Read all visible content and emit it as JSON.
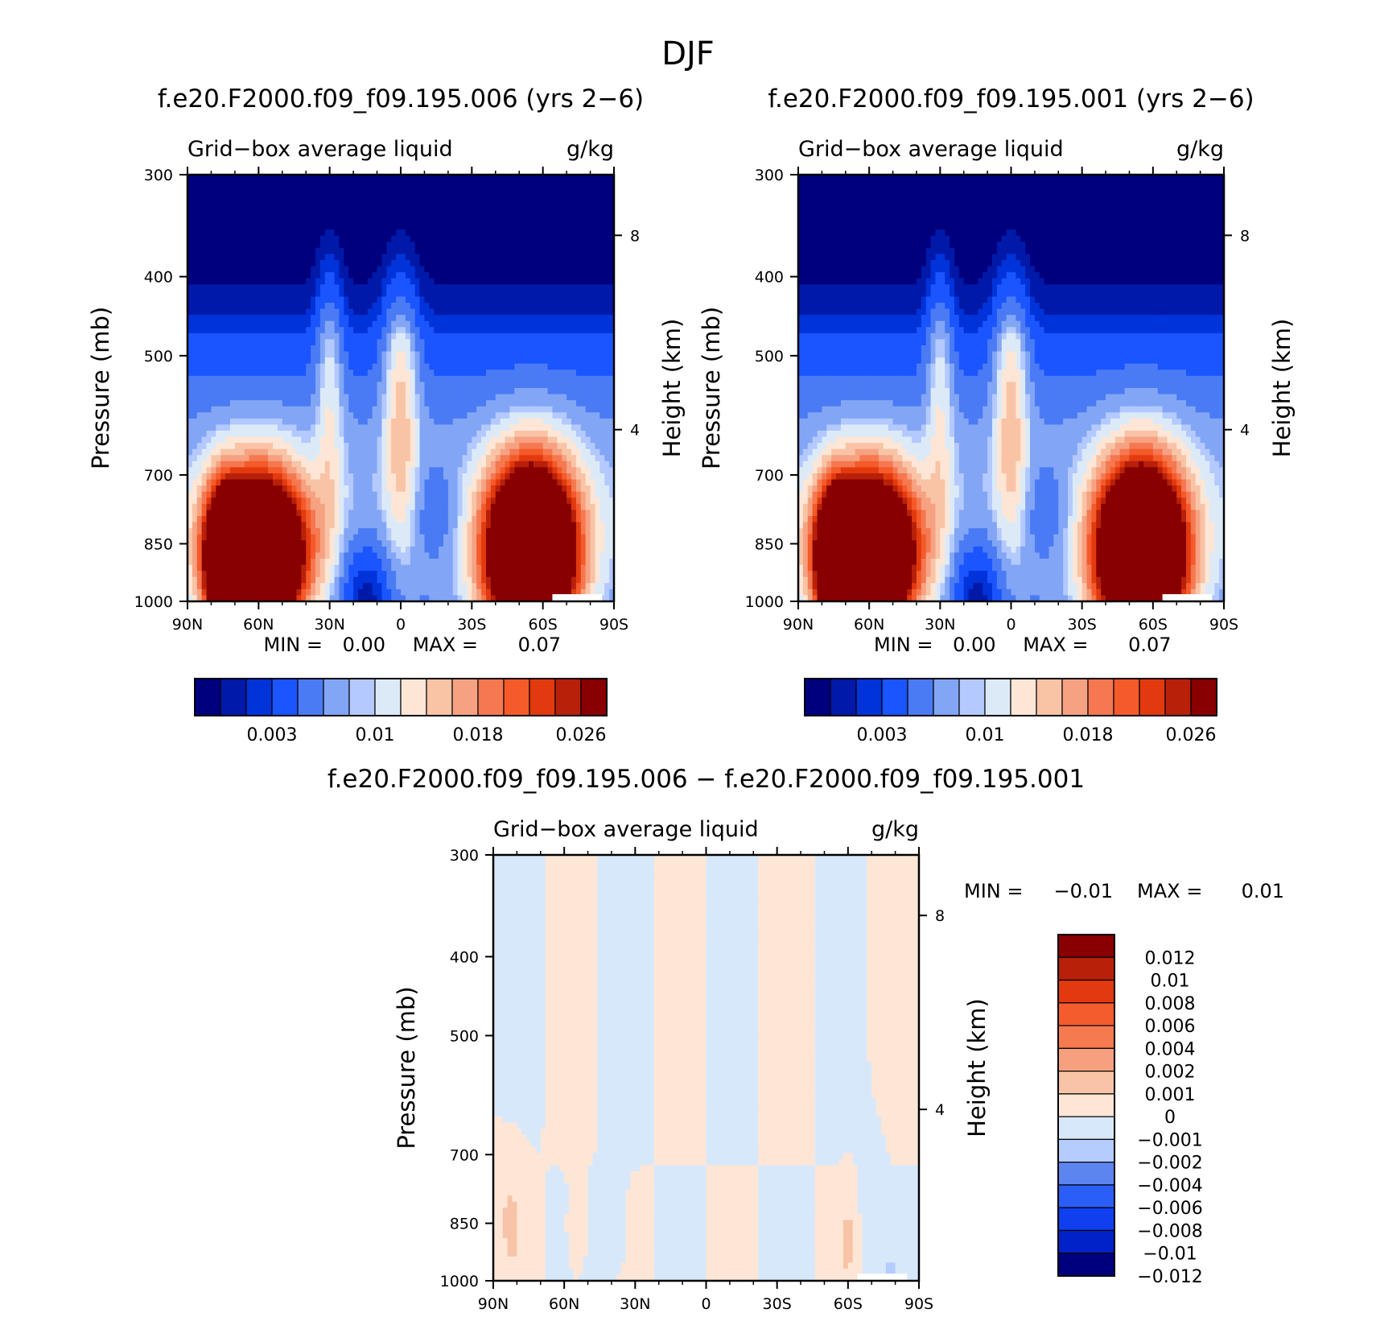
{
  "page_title": "DJF",
  "colors": {
    "frame": "#000000",
    "background": "#ffffff"
  },
  "chart_data": [
    {
      "type": "heatmap",
      "title": "f.e20.F2000.f09_f09.195.006 (yrs 2−6)",
      "subtitle_left": "Grid−box average liquid",
      "subtitle_right": "g/kg",
      "xlabel": "",
      "ylabel": "Pressure (mb)",
      "ylabel_right": "Height (km)",
      "x_ticks": [
        "90N",
        "60N",
        "30N",
        "0",
        "30S",
        "60S",
        "90S"
      ],
      "y_ticks": [
        "300",
        "400",
        "500",
        "700",
        "850",
        "1000"
      ],
      "y_right_ticks": [
        "8",
        "4"
      ],
      "ylim": [
        1000,
        300
      ],
      "y_scale": "log",
      "min_label": "MIN =",
      "min_value": "0.00",
      "max_label": "MAX =",
      "max_value": "0.07",
      "colorbar": {
        "orientation": "horizontal",
        "colors": [
          "#00007f",
          "#0019a8",
          "#0033d9",
          "#1a55ff",
          "#4a7bf5",
          "#82a6f5",
          "#b3c9ff",
          "#dceaf8",
          "#fde6d6",
          "#f9c3a6",
          "#f6a282",
          "#f57850",
          "#f55a2a",
          "#e23a0e",
          "#b8200a",
          "#880000"
        ],
        "labels": [
          "0.003",
          "0.01",
          "0.018",
          "0.026"
        ]
      }
    },
    {
      "type": "heatmap",
      "title": "f.e20.F2000.f09_f09.195.001 (yrs 2−6)",
      "subtitle_left": "Grid−box average liquid",
      "subtitle_right": "g/kg",
      "xlabel": "",
      "ylabel": "Pressure (mb)",
      "ylabel_right": "Height (km)",
      "x_ticks": [
        "90N",
        "60N",
        "30N",
        "0",
        "30S",
        "60S",
        "90S"
      ],
      "y_ticks": [
        "300",
        "400",
        "500",
        "700",
        "850",
        "1000"
      ],
      "y_right_ticks": [
        "8",
        "4"
      ],
      "ylim": [
        1000,
        300
      ],
      "y_scale": "log",
      "min_label": "MIN =",
      "min_value": "0.00",
      "max_label": "MAX =",
      "max_value": "0.07",
      "colorbar": {
        "orientation": "horizontal",
        "colors": [
          "#00007f",
          "#0019a8",
          "#0033d9",
          "#1a55ff",
          "#4a7bf5",
          "#82a6f5",
          "#b3c9ff",
          "#dceaf8",
          "#fde6d6",
          "#f9c3a6",
          "#f6a282",
          "#f57850",
          "#f55a2a",
          "#e23a0e",
          "#b8200a",
          "#880000"
        ],
        "labels": [
          "0.003",
          "0.01",
          "0.018",
          "0.026"
        ]
      }
    },
    {
      "type": "heatmap",
      "title": "f.e20.F2000.f09_f09.195.006 − f.e20.F2000.f09_f09.195.001",
      "subtitle_left": "Grid−box average liquid",
      "subtitle_right": "g/kg",
      "xlabel": "",
      "ylabel": "Pressure (mb)",
      "ylabel_right": "Height (km)",
      "x_ticks": [
        "90N",
        "60N",
        "30N",
        "0",
        "30S",
        "60S",
        "90S"
      ],
      "y_ticks": [
        "300",
        "400",
        "500",
        "700",
        "850",
        "1000"
      ],
      "y_right_ticks": [
        "8",
        "4"
      ],
      "ylim": [
        1000,
        300
      ],
      "y_scale": "log",
      "min_label": "MIN =",
      "min_value": "−0.01",
      "max_label": "MAX =",
      "max_value": "0.01",
      "colorbar": {
        "orientation": "vertical",
        "colors": [
          "#00007f",
          "#0022c8",
          "#0f3fee",
          "#2b5ef7",
          "#5c85f0",
          "#b5ccff",
          "#d8e8fb",
          "#fde6d6",
          "#f8c3a6",
          "#f6a07e",
          "#f57a50",
          "#f55c2c",
          "#e23a0e",
          "#b8200a",
          "#880000"
        ],
        "labels": [
          "0.012",
          "0.01",
          "0.008",
          "0.006",
          "0.004",
          "0.002",
          "0.001",
          "0",
          "−0.001",
          "−0.002",
          "−0.004",
          "−0.006",
          "−0.008",
          "−0.01",
          "−0.012"
        ]
      }
    }
  ]
}
